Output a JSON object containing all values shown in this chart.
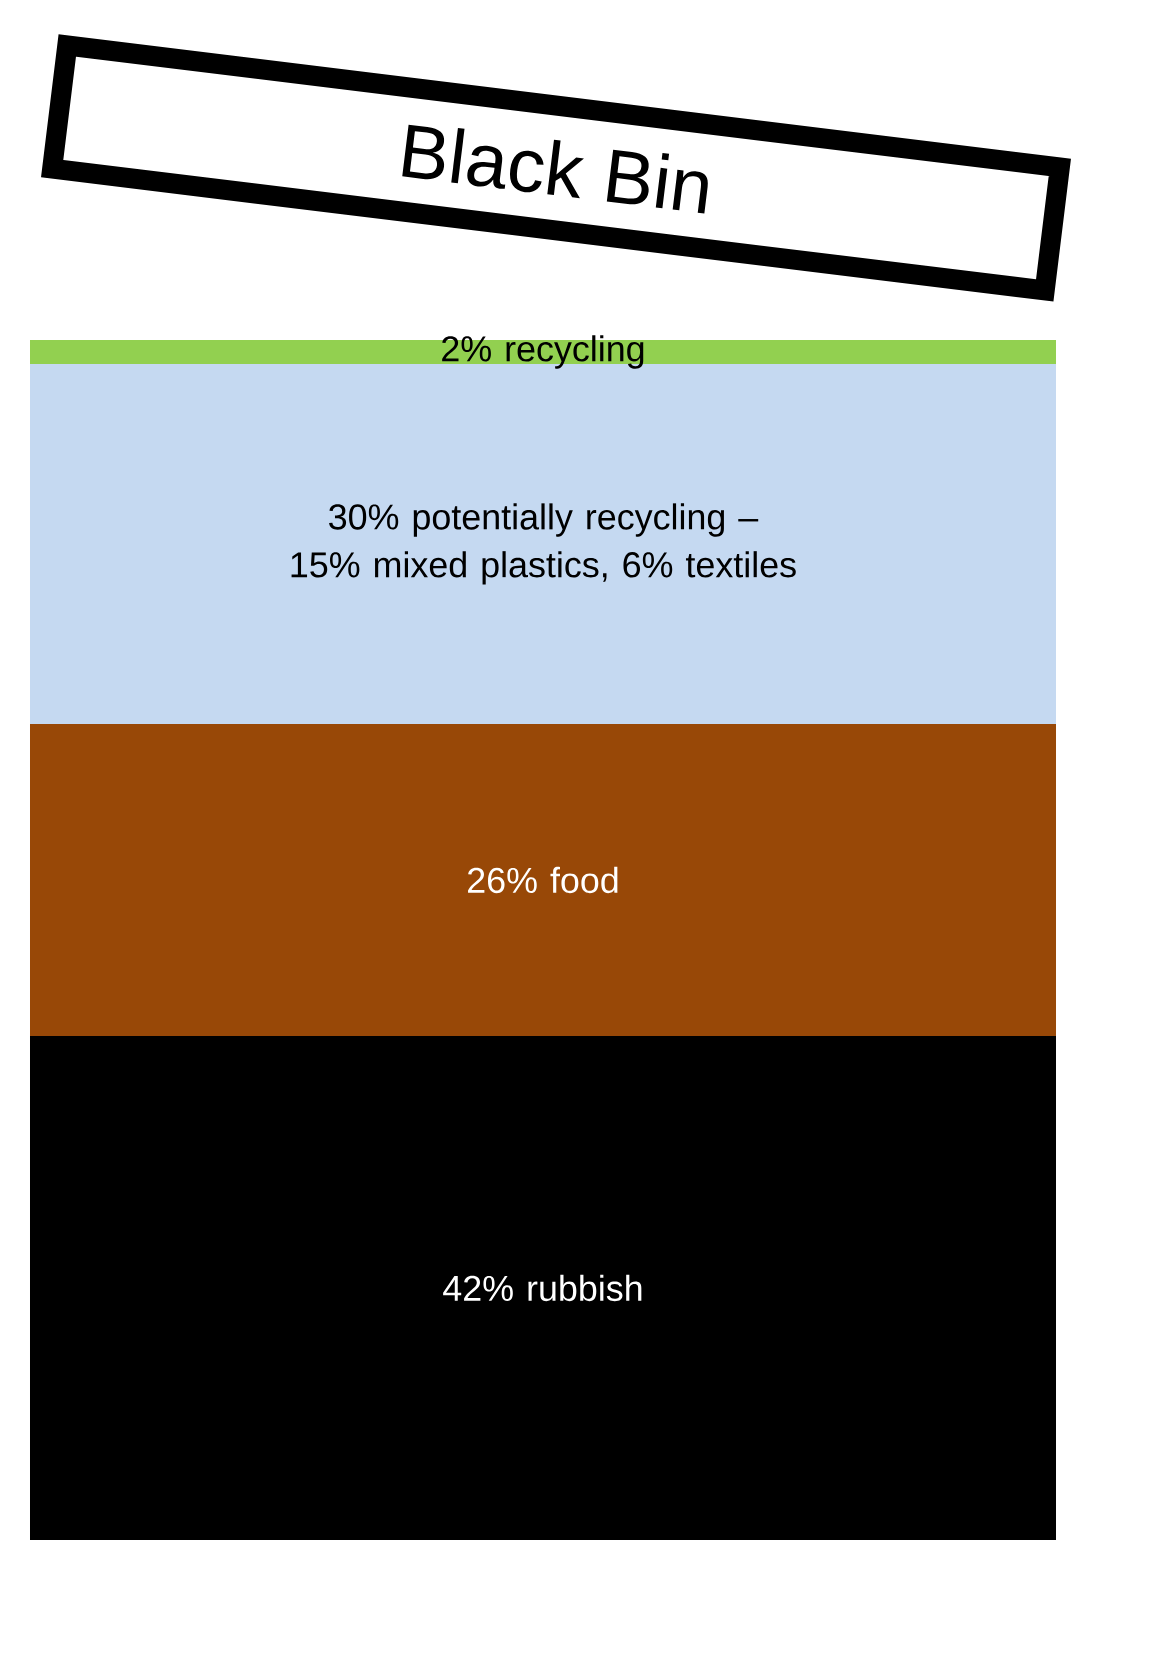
{
  "chart_data": {
    "type": "bar",
    "title": "Black Bin",
    "stacked": true,
    "categories": [
      null
    ],
    "series": [
      {
        "name": "rubbish",
        "color": "#000000",
        "values": [
          42
        ],
        "value_labels": [
          "42%"
        ]
      },
      {
        "name": "food",
        "color": "#984807",
        "values": [
          26
        ],
        "value_labels": [
          "26%"
        ]
      },
      {
        "name": "potentially recycling – 15% mixed plastics, 6% textiles",
        "color": "#c5d9f1",
        "values": [
          30
        ],
        "value_labels": [
          "30%"
        ]
      },
      {
        "name": "recycling",
        "color": "#92d050",
        "values": [
          2
        ],
        "value_labels": [
          "2%"
        ]
      }
    ]
  }
}
